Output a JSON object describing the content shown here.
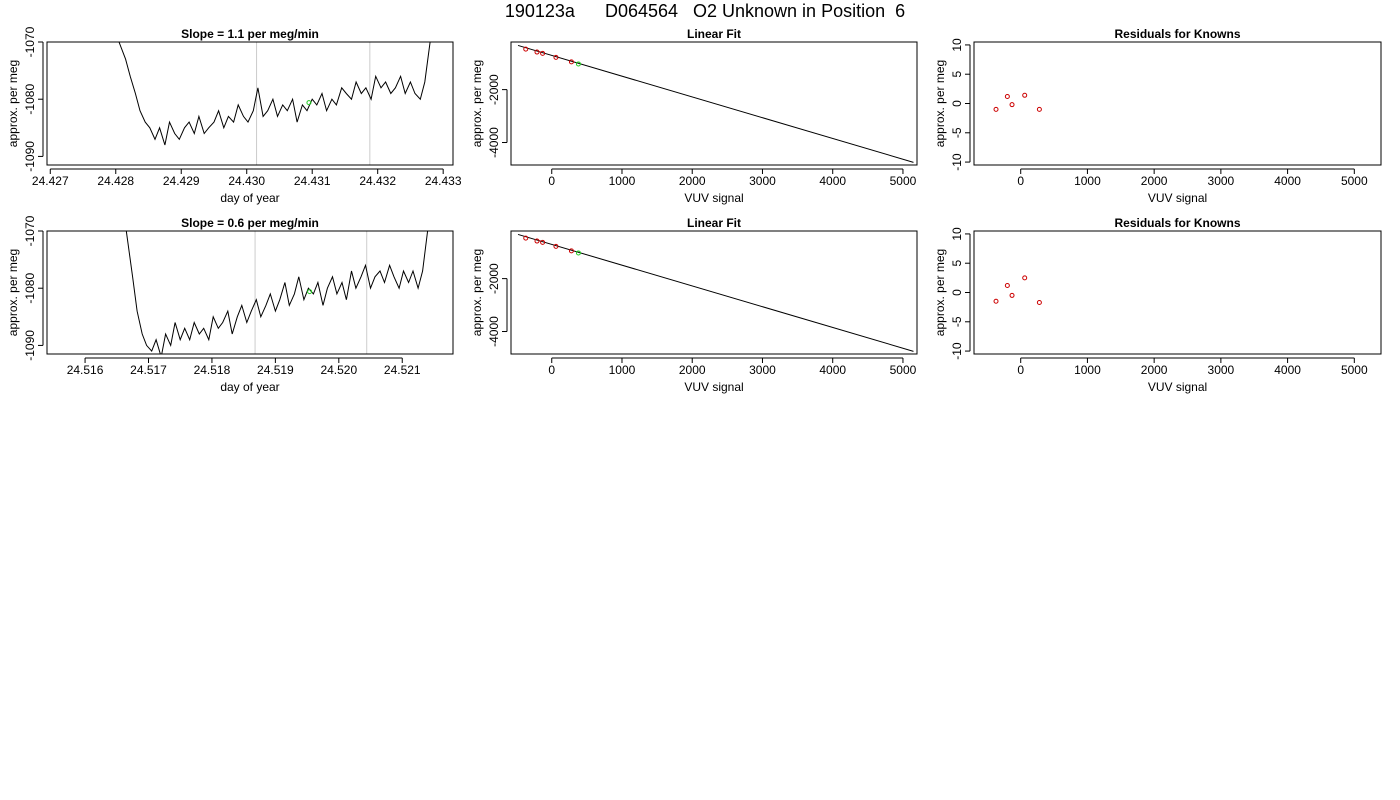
{
  "header": {
    "title": "190123a      D064564   O2 Unknown in Position  6"
  },
  "chart_data": [
    {
      "type": "line",
      "title": "Slope =  1.1  per meg/min",
      "xlabel": "day of year",
      "ylabel": "approx. per meg",
      "xlim": [
        24.42695,
        24.43315
      ],
      "ylim": [
        -1091.5,
        -1070
      ],
      "xticks": [
        "24.427",
        "24.428",
        "24.429",
        "24.430",
        "24.431",
        "24.432",
        "24.433"
      ],
      "yticks": [
        "-1090",
        "-1080",
        "-1070"
      ],
      "vlines": [
        24.43015,
        24.43188
      ],
      "highlight_point": {
        "x": 24.43095,
        "y": -1080.6,
        "color": "#22cc22"
      },
      "line_color": "#000000",
      "vline_color": "#cccccc",
      "series": [
        {
          "x": [
            24.42805,
            24.42815,
            24.42822,
            24.4283,
            24.42837,
            24.42845,
            24.42852,
            24.4286,
            24.42867,
            24.42875,
            24.42882,
            24.4289,
            24.42897,
            24.42905,
            24.42912,
            24.4292,
            24.42927,
            24.42935,
            24.42942,
            24.4295,
            24.42957,
            24.42965,
            24.42972,
            24.4298,
            24.42987,
            24.42995,
            24.43002,
            24.4301,
            24.43017,
            24.43025,
            24.43032,
            24.4304,
            24.43047,
            24.43055,
            24.43062,
            24.4307,
            24.43077,
            24.43085,
            24.43092,
            24.431,
            24.43107,
            24.43115,
            24.43122,
            24.4313,
            24.43137,
            24.43145,
            24.43152,
            24.4316,
            24.43167,
            24.43175,
            24.43182,
            24.4319,
            24.43197,
            24.43205,
            24.43212,
            24.4322,
            24.43227,
            24.43235,
            24.43242,
            24.4325,
            24.43257,
            24.43265,
            24.43272,
            24.4328
          ],
          "y": [
            -1070,
            -1073,
            -1076,
            -1079,
            -1082,
            -1084,
            -1085,
            -1087,
            -1085,
            -1088,
            -1084,
            -1086,
            -1087,
            -1085,
            -1084,
            -1086,
            -1083,
            -1086,
            -1085,
            -1084,
            -1082,
            -1085,
            -1083,
            -1084,
            -1081,
            -1083,
            -1084,
            -1082,
            -1078,
            -1083,
            -1082,
            -1080,
            -1083,
            -1081,
            -1082,
            -1080,
            -1084,
            -1081,
            -1082,
            -1080,
            -1081,
            -1079,
            -1082,
            -1080,
            -1081,
            -1078,
            -1079,
            -1080,
            -1077,
            -1079,
            -1078,
            -1080,
            -1076,
            -1078,
            -1077,
            -1079,
            -1078,
            -1076,
            -1079,
            -1077,
            -1079,
            -1080,
            -1077,
            -1070
          ]
        }
      ]
    },
    {
      "type": "scatter",
      "title": "Linear Fit",
      "xlabel": "VUV signal",
      "ylabel": "approx. per meg",
      "xlim": [
        -580,
        5200
      ],
      "ylim": [
        -4850,
        -200
      ],
      "xticks": [
        "0",
        "1000",
        "2000",
        "3000",
        "4000",
        "5000"
      ],
      "yticks": [
        "-4000",
        "-2000"
      ],
      "fit_line": {
        "x": [
          -480,
          5150
        ],
        "y": [
          -330,
          -4750
        ]
      },
      "points": {
        "x": [
          -370,
          -210,
          -130,
          60,
          280
        ],
        "y": [
          -470,
          -580,
          -630,
          -780,
          -950
        ],
        "color": "#cc0000"
      },
      "highlight_point": {
        "x": 380,
        "y": -1030,
        "color": "#22cc22"
      }
    },
    {
      "type": "scatter",
      "title": "Residuals for Knowns",
      "xlabel": "VUV signal",
      "ylabel": "approx. per meg",
      "xlim": [
        -700,
        5400
      ],
      "ylim": [
        -10.5,
        10.5
      ],
      "xticks": [
        "0",
        "1000",
        "2000",
        "3000",
        "4000",
        "5000"
      ],
      "yticks": [
        "-10",
        "-5",
        "0",
        "5",
        "10"
      ],
      "points": {
        "x": [
          -370,
          -200,
          -130,
          60,
          280
        ],
        "y": [
          -1,
          1.2,
          -0.2,
          1.4,
          -1
        ],
        "color": "#cc0000"
      }
    },
    {
      "type": "line",
      "title": "Slope =  0.6  per meg/min",
      "xlabel": "day of year",
      "ylabel": "approx. per meg",
      "xlim": [
        24.5154,
        24.5218
      ],
      "ylim": [
        -1091.5,
        -1070
      ],
      "xticks": [
        "24.516",
        "24.517",
        "24.518",
        "24.519",
        "24.520",
        "24.521"
      ],
      "yticks": [
        "-1090",
        "-1080",
        "-1070"
      ],
      "vlines": [
        24.51868,
        24.52044
      ],
      "highlight_point": {
        "x": 24.51954,
        "y": -1080.6,
        "color": "#22cc22"
      },
      "line_color": "#000000",
      "vline_color": "#cccccc",
      "series": [
        {
          "x": [
            24.51665,
            24.51675,
            24.51682,
            24.5169,
            24.51697,
            24.51705,
            24.51712,
            24.5172,
            24.51727,
            24.51735,
            24.51742,
            24.5175,
            24.51757,
            24.51765,
            24.51772,
            24.5178,
            24.51787,
            24.51795,
            24.51802,
            24.5181,
            24.51817,
            24.51825,
            24.51832,
            24.5184,
            24.51847,
            24.51855,
            24.51862,
            24.5187,
            24.51877,
            24.51885,
            24.51892,
            24.519,
            24.51907,
            24.51915,
            24.51922,
            24.5193,
            24.51937,
            24.51945,
            24.51952,
            24.5196,
            24.51967,
            24.51975,
            24.51982,
            24.5199,
            24.51997,
            24.52005,
            24.52012,
            24.5202,
            24.52027,
            24.52035,
            24.52042,
            24.5205,
            24.52057,
            24.52065,
            24.52072,
            24.5208,
            24.52087,
            24.52095,
            24.52102,
            24.5211,
            24.52117,
            24.52125,
            24.52132,
            24.5214
          ],
          "y": [
            -1070,
            -1078,
            -1084,
            -1088,
            -1090,
            -1091,
            -1089,
            -1092,
            -1088,
            -1090,
            -1086,
            -1089,
            -1087,
            -1089,
            -1086,
            -1088,
            -1087,
            -1089,
            -1085,
            -1087,
            -1086,
            -1084,
            -1088,
            -1085,
            -1083,
            -1086,
            -1084,
            -1082,
            -1085,
            -1083,
            -1081,
            -1084,
            -1082,
            -1079,
            -1083,
            -1081,
            -1078,
            -1082,
            -1080,
            -1081,
            -1079,
            -1083,
            -1080,
            -1078,
            -1081,
            -1079,
            -1082,
            -1077,
            -1080,
            -1078,
            -1076,
            -1080,
            -1078,
            -1077,
            -1079,
            -1076,
            -1078,
            -1080,
            -1077,
            -1079,
            -1077,
            -1080,
            -1077,
            -1070
          ]
        }
      ]
    },
    {
      "type": "scatter",
      "title": "Linear Fit",
      "xlabel": "VUV signal",
      "ylabel": "approx. per meg",
      "xlim": [
        -580,
        5200
      ],
      "ylim": [
        -4850,
        -200
      ],
      "xticks": [
        "0",
        "1000",
        "2000",
        "3000",
        "4000",
        "5000"
      ],
      "yticks": [
        "-4000",
        "-2000"
      ],
      "fit_line": {
        "x": [
          -480,
          5150
        ],
        "y": [
          -330,
          -4750
        ]
      },
      "points": {
        "x": [
          -370,
          -210,
          -130,
          60,
          280
        ],
        "y": [
          -470,
          -580,
          -630,
          -780,
          -950
        ],
        "color": "#cc0000"
      },
      "highlight_point": {
        "x": 380,
        "y": -1030,
        "color": "#22cc22"
      }
    },
    {
      "type": "scatter",
      "title": "Residuals for Knowns",
      "xlabel": "VUV signal",
      "ylabel": "approx. per meg",
      "xlim": [
        -700,
        5400
      ],
      "ylim": [
        -10.5,
        10.5
      ],
      "xticks": [
        "0",
        "1000",
        "2000",
        "3000",
        "4000",
        "5000"
      ],
      "yticks": [
        "-10",
        "-5",
        "0",
        "5",
        "10"
      ],
      "points": {
        "x": [
          -370,
          -200,
          -130,
          60,
          280
        ],
        "y": [
          -1.5,
          1.2,
          -0.5,
          2.5,
          -1.7
        ],
        "color": "#cc0000"
      }
    }
  ]
}
